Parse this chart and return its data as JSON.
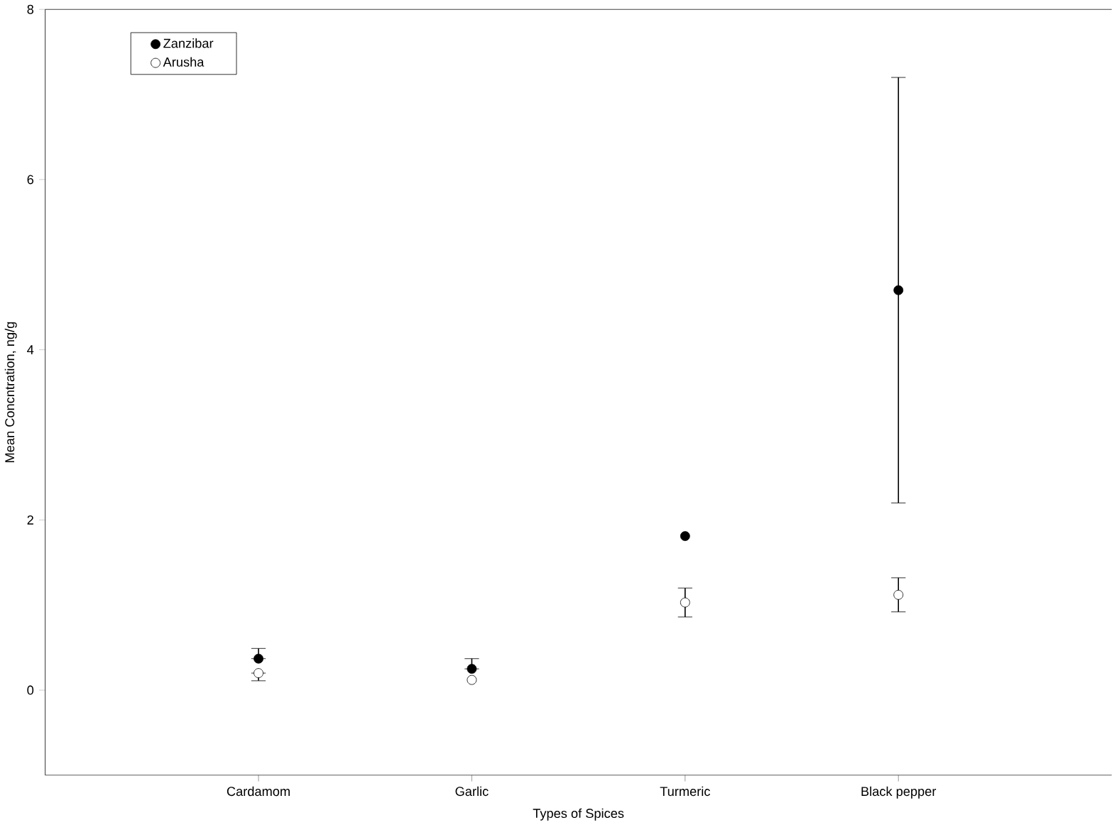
{
  "chart_data": {
    "type": "scatter",
    "xlabel": "Types of Spices",
    "ylabel": "Mean Concntration, ng/g",
    "categories": [
      "Cardamom",
      "Garlic",
      "Turmeric",
      "Black pepper"
    ],
    "series": [
      {
        "name": "Zanzibar",
        "color": "#000000",
        "values": [
          0.37,
          0.25,
          1.81,
          4.7
        ],
        "errors": [
          [
            0.37,
            0.49
          ],
          [
            0.25,
            0.37
          ],
          null,
          2.5
        ]
      },
      {
        "name": "Arusha",
        "color": "#ffffff",
        "values": [
          0.2,
          0.12,
          1.03,
          1.12
        ],
        "errors": [
          [
            0.11,
            0.2
          ],
          null,
          0.17,
          0.2
        ]
      }
    ],
    "ylim": [
      -1,
      8
    ],
    "yticks": [
      0,
      2,
      4,
      6,
      8
    ],
    "grid": false,
    "legend": "top left",
    "marker": "circle"
  }
}
